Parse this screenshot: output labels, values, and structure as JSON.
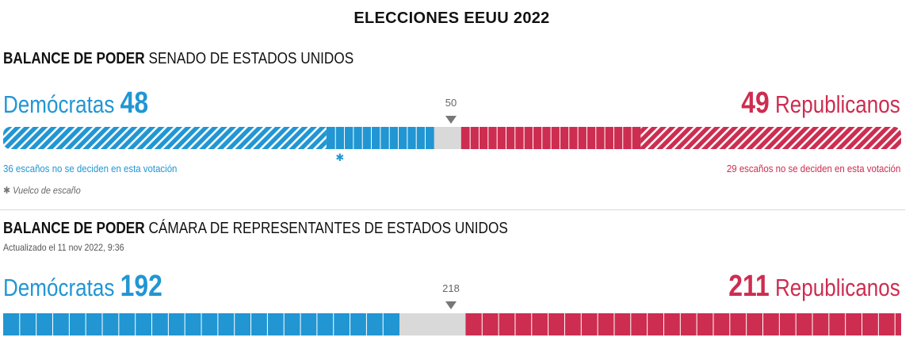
{
  "header": {
    "title": "ELECCIONES EEUU 2022"
  },
  "colors": {
    "dem": "#2196d3",
    "rep": "#cd2d50",
    "undecided": "#d9d9d9",
    "marker": "#777777"
  },
  "senate": {
    "title_bold": "BALANCE DE PODER",
    "title_rest": " SENADO DE ESTADOS UNIDOS",
    "dem_label": "Demócratas",
    "dem_count": "48",
    "rep_count": "49",
    "rep_label": "Republicanos",
    "majority": "50",
    "dem_undecided_note": "36 escaños no se deciden en esta votación",
    "rep_undecided_note": "29 escaños no se deciden en esta votación",
    "legend_icon": "star-icon",
    "legend_text": "Vuelco de escaño"
  },
  "house": {
    "title_bold": "BALANCE DE PODER",
    "title_rest": " CÁMARA DE REPRESENTANTES DE ESTADOS UNIDOS",
    "updated": "Actualizado el 11 nov 2022, 9:36",
    "dem_label": "Demócratas",
    "dem_count": "192",
    "rep_count": "211",
    "rep_label": "Republicanos",
    "majority": "218"
  },
  "chart_data": [
    {
      "type": "bar",
      "title": "SENADO DE ESTADOS UNIDOS",
      "total_seats": 100,
      "majority": 50,
      "segments": [
        {
          "party": "Demócratas",
          "status": "not_up",
          "seats": 36
        },
        {
          "party": "Demócratas",
          "status": "won",
          "seats": 12
        },
        {
          "party": "Undecided",
          "status": "undecided",
          "seats": 3
        },
        {
          "party": "Republicanos",
          "status": "won",
          "seats": 20
        },
        {
          "party": "Republicanos",
          "status": "not_up",
          "seats": 29
        }
      ],
      "flips": [
        {
          "party": "Demócratas",
          "seat_index": 37
        }
      ]
    },
    {
      "type": "bar",
      "title": "CÁMARA DE REPRESENTANTES DE ESTADOS UNIDOS",
      "total_seats": 435,
      "majority": 218,
      "segments": [
        {
          "party": "Demócratas",
          "status": "won",
          "seats": 192
        },
        {
          "party": "Undecided",
          "status": "undecided",
          "seats": 32
        },
        {
          "party": "Republicanos",
          "status": "won",
          "seats": 211
        }
      ]
    }
  ]
}
